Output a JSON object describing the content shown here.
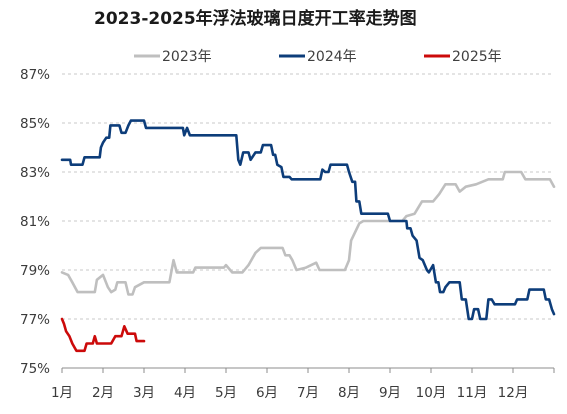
{
  "chart_data": {
    "type": "line",
    "title": "2023-2025年浮法玻璃日度开工率走势图",
    "xlabel": "",
    "ylabel": "",
    "x_unit": "month",
    "x_range": [
      1,
      13
    ],
    "x_tick_labels": [
      "1月",
      "2月",
      "3月",
      "4月",
      "5月",
      "6月",
      "7月",
      "8月",
      "9月",
      "10月",
      "11月",
      "12月"
    ],
    "y_tick_labels": [
      "75%",
      "77%",
      "79%",
      "81%",
      "83%",
      "85%",
      "87%"
    ],
    "ylim": [
      75,
      87
    ],
    "grid": "horizontal-dashed",
    "legend_position": "top",
    "series": [
      {
        "name": "2023年",
        "color": "#bfbfbf",
        "points": [
          [
            1.0,
            78.9
          ],
          [
            1.15,
            78.8
          ],
          [
            1.25,
            78.5
          ],
          [
            1.38,
            78.1
          ],
          [
            1.8,
            78.1
          ],
          [
            1.85,
            78.6
          ],
          [
            2.0,
            78.8
          ],
          [
            2.12,
            78.3
          ],
          [
            2.2,
            78.1
          ],
          [
            2.3,
            78.2
          ],
          [
            2.35,
            78.5
          ],
          [
            2.55,
            78.5
          ],
          [
            2.62,
            78.0
          ],
          [
            2.72,
            78.0
          ],
          [
            2.78,
            78.3
          ],
          [
            3.0,
            78.5
          ],
          [
            3.62,
            78.5
          ],
          [
            3.72,
            79.4
          ],
          [
            3.8,
            78.9
          ],
          [
            4.2,
            78.9
          ],
          [
            4.25,
            79.1
          ],
          [
            4.95,
            79.1
          ],
          [
            5.0,
            79.2
          ],
          [
            5.15,
            78.9
          ],
          [
            5.4,
            78.9
          ],
          [
            5.55,
            79.2
          ],
          [
            5.72,
            79.7
          ],
          [
            5.85,
            79.9
          ],
          [
            6.38,
            79.9
          ],
          [
            6.45,
            79.6
          ],
          [
            6.55,
            79.6
          ],
          [
            6.62,
            79.4
          ],
          [
            6.72,
            79.0
          ],
          [
            6.95,
            79.1
          ],
          [
            7.2,
            79.3
          ],
          [
            7.28,
            79.0
          ],
          [
            7.9,
            79.0
          ],
          [
            8.0,
            79.4
          ],
          [
            8.05,
            80.2
          ],
          [
            8.25,
            80.9
          ],
          [
            8.35,
            81.0
          ],
          [
            9.3,
            81.0
          ],
          [
            9.4,
            81.2
          ],
          [
            9.6,
            81.3
          ],
          [
            9.78,
            81.8
          ],
          [
            10.05,
            81.8
          ],
          [
            10.2,
            82.1
          ],
          [
            10.35,
            82.5
          ],
          [
            10.6,
            82.5
          ],
          [
            10.7,
            82.2
          ],
          [
            10.85,
            82.4
          ],
          [
            11.1,
            82.5
          ],
          [
            11.4,
            82.7
          ],
          [
            11.75,
            82.7
          ],
          [
            11.8,
            83.0
          ],
          [
            12.2,
            83.0
          ],
          [
            12.3,
            82.7
          ],
          [
            12.9,
            82.7
          ],
          [
            13.0,
            82.4
          ]
        ]
      },
      {
        "name": "2024年",
        "color": "#0d3d7a",
        "points": [
          [
            1.0,
            83.5
          ],
          [
            1.2,
            83.5
          ],
          [
            1.22,
            83.3
          ],
          [
            1.5,
            83.3
          ],
          [
            1.55,
            83.6
          ],
          [
            1.92,
            83.6
          ],
          [
            1.95,
            84.0
          ],
          [
            2.0,
            84.2
          ],
          [
            2.08,
            84.4
          ],
          [
            2.15,
            84.4
          ],
          [
            2.18,
            84.9
          ],
          [
            2.4,
            84.9
          ],
          [
            2.45,
            84.6
          ],
          [
            2.55,
            84.6
          ],
          [
            2.62,
            84.9
          ],
          [
            2.68,
            85.1
          ],
          [
            3.0,
            85.1
          ],
          [
            3.05,
            84.8
          ],
          [
            3.95,
            84.8
          ],
          [
            3.98,
            84.5
          ],
          [
            4.05,
            84.8
          ],
          [
            4.12,
            84.5
          ],
          [
            5.25,
            84.5
          ],
          [
            5.3,
            83.5
          ],
          [
            5.35,
            83.3
          ],
          [
            5.42,
            83.8
          ],
          [
            5.55,
            83.8
          ],
          [
            5.6,
            83.5
          ],
          [
            5.72,
            83.8
          ],
          [
            5.85,
            83.8
          ],
          [
            5.9,
            84.1
          ],
          [
            6.1,
            84.1
          ],
          [
            6.15,
            83.7
          ],
          [
            6.2,
            83.7
          ],
          [
            6.25,
            83.3
          ],
          [
            6.35,
            83.2
          ],
          [
            6.4,
            82.8
          ],
          [
            6.55,
            82.8
          ],
          [
            6.6,
            82.7
          ],
          [
            7.3,
            82.7
          ],
          [
            7.35,
            83.1
          ],
          [
            7.42,
            83.0
          ],
          [
            7.5,
            83.0
          ],
          [
            7.55,
            83.3
          ],
          [
            7.95,
            83.3
          ],
          [
            8.0,
            83.0
          ],
          [
            8.08,
            82.6
          ],
          [
            8.15,
            82.6
          ],
          [
            8.18,
            81.8
          ],
          [
            8.25,
            81.8
          ],
          [
            8.3,
            81.3
          ],
          [
            8.95,
            81.3
          ],
          [
            9.0,
            81.0
          ],
          [
            9.4,
            81.0
          ],
          [
            9.42,
            80.7
          ],
          [
            9.5,
            80.7
          ],
          [
            9.55,
            80.4
          ],
          [
            9.65,
            80.2
          ],
          [
            9.72,
            79.5
          ],
          [
            9.8,
            79.4
          ],
          [
            9.9,
            79.0
          ],
          [
            9.95,
            78.9
          ],
          [
            10.05,
            79.2
          ],
          [
            10.12,
            78.5
          ],
          [
            10.18,
            78.5
          ],
          [
            10.22,
            78.1
          ],
          [
            10.3,
            78.1
          ],
          [
            10.35,
            78.3
          ],
          [
            10.45,
            78.5
          ],
          [
            10.7,
            78.5
          ],
          [
            10.75,
            77.8
          ],
          [
            10.85,
            77.8
          ],
          [
            10.92,
            77.0
          ],
          [
            11.0,
            77.0
          ],
          [
            11.05,
            77.4
          ],
          [
            11.15,
            77.4
          ],
          [
            11.2,
            77.0
          ],
          [
            11.35,
            77.0
          ],
          [
            11.4,
            77.8
          ],
          [
            11.48,
            77.8
          ],
          [
            11.55,
            77.6
          ],
          [
            12.05,
            77.6
          ],
          [
            12.1,
            77.8
          ],
          [
            12.35,
            77.8
          ],
          [
            12.4,
            78.2
          ],
          [
            12.75,
            78.2
          ],
          [
            12.8,
            77.8
          ],
          [
            12.88,
            77.8
          ],
          [
            12.95,
            77.4
          ],
          [
            13.0,
            77.2
          ]
        ]
      },
      {
        "name": "2025年",
        "color": "#cc0a0a",
        "points": [
          [
            1.0,
            77.0
          ],
          [
            1.05,
            76.8
          ],
          [
            1.1,
            76.5
          ],
          [
            1.18,
            76.3
          ],
          [
            1.25,
            76.0
          ],
          [
            1.35,
            75.7
          ],
          [
            1.55,
            75.7
          ],
          [
            1.6,
            76.0
          ],
          [
            1.75,
            76.0
          ],
          [
            1.8,
            76.3
          ],
          [
            1.85,
            76.0
          ],
          [
            2.2,
            76.0
          ],
          [
            2.3,
            76.3
          ],
          [
            2.45,
            76.3
          ],
          [
            2.52,
            76.7
          ],
          [
            2.6,
            76.4
          ],
          [
            2.78,
            76.4
          ],
          [
            2.82,
            76.1
          ],
          [
            3.0,
            76.1
          ]
        ]
      }
    ]
  }
}
